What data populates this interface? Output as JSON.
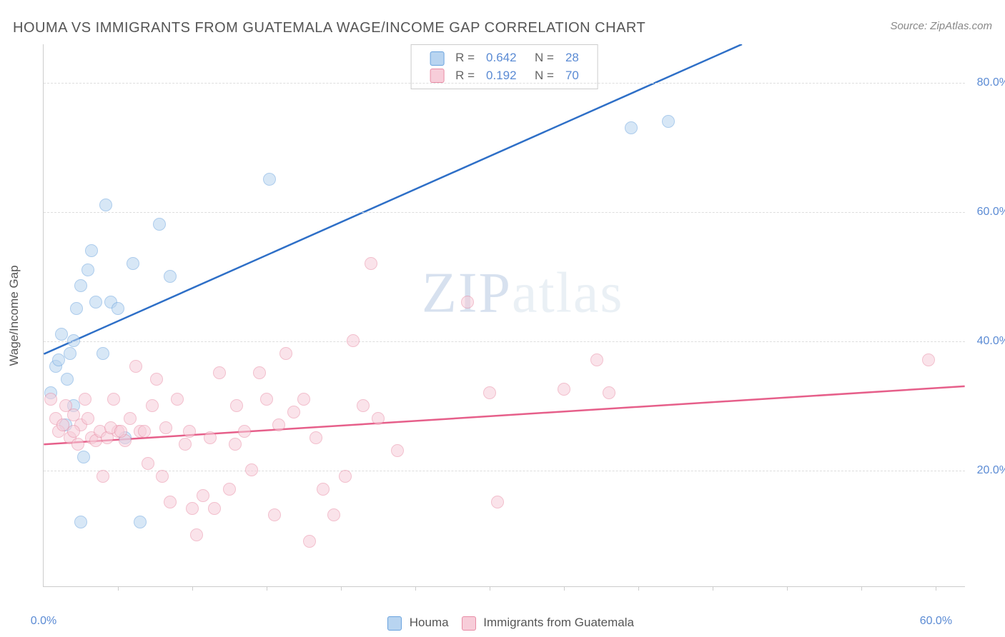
{
  "title": "HOUMA VS IMMIGRANTS FROM GUATEMALA WAGE/INCOME GAP CORRELATION CHART",
  "source": "Source: ZipAtlas.com",
  "ylabel": "Wage/Income Gap",
  "watermark_zip": "ZIP",
  "watermark_atlas": "atlas",
  "chart": {
    "type": "scatter",
    "background_color": "#ffffff",
    "grid_color": "#dddddd",
    "axis_color": "#cccccc",
    "tick_label_color": "#5b8bd4",
    "xlim": [
      0,
      62
    ],
    "ylim": [
      2,
      86
    ],
    "yticks": [
      20,
      40,
      60,
      80
    ],
    "ytick_labels": [
      "20.0%",
      "40.0%",
      "60.0%",
      "80.0%"
    ],
    "xtick_marks": [
      5,
      10,
      15,
      20,
      25,
      30,
      35,
      40,
      45,
      50,
      55,
      60
    ],
    "xtick_labels": [
      {
        "x": 0,
        "label": "0.0%"
      },
      {
        "x": 60,
        "label": "60.0%"
      }
    ],
    "point_radius": 9,
    "point_opacity": 0.55,
    "line_width": 2.5
  },
  "series": [
    {
      "name": "Houma",
      "fill": "#b8d4f0",
      "stroke": "#6aa3de",
      "line_color": "#2e6fc7",
      "r_label": "R =",
      "r_value": "0.642",
      "n_label": "N =",
      "n_value": "28",
      "trend": {
        "x1": 0,
        "y1": 38,
        "x2": 47,
        "y2": 86
      },
      "points": [
        [
          0.5,
          32
        ],
        [
          0.8,
          36
        ],
        [
          1.0,
          37
        ],
        [
          1.2,
          41
        ],
        [
          1.5,
          27
        ],
        [
          1.8,
          38
        ],
        [
          2.0,
          40
        ],
        [
          2.2,
          45
        ],
        [
          2.5,
          48.5
        ],
        [
          2.7,
          22
        ],
        [
          3.0,
          51
        ],
        [
          3.2,
          54
        ],
        [
          3.5,
          46
        ],
        [
          4.0,
          38
        ],
        [
          4.2,
          61
        ],
        [
          4.5,
          46
        ],
        [
          5.0,
          45
        ],
        [
          5.5,
          25
        ],
        [
          6.0,
          52
        ],
        [
          6.5,
          12
        ],
        [
          7.8,
          58
        ],
        [
          2.5,
          12
        ],
        [
          8.5,
          50
        ],
        [
          15.2,
          65
        ],
        [
          39.5,
          73
        ],
        [
          42.0,
          74
        ],
        [
          2.0,
          30
        ],
        [
          1.6,
          34
        ]
      ]
    },
    {
      "name": "Immigrants from Guatemala",
      "fill": "#f7cdd9",
      "stroke": "#e88ca5",
      "line_color": "#e65f8a",
      "r_label": "R =",
      "r_value": "0.192",
      "n_label": "N =",
      "n_value": "70",
      "trend": {
        "x1": 0,
        "y1": 24,
        "x2": 62,
        "y2": 33
      },
      "points": [
        [
          0.5,
          31
        ],
        [
          0.8,
          28
        ],
        [
          1.0,
          26
        ],
        [
          1.3,
          27
        ],
        [
          1.5,
          30
        ],
        [
          1.8,
          25
        ],
        [
          2.0,
          28.5
        ],
        [
          2.3,
          24
        ],
        [
          2.5,
          27
        ],
        [
          2.8,
          31
        ],
        [
          3.2,
          25
        ],
        [
          3.5,
          24.5
        ],
        [
          3.8,
          26
        ],
        [
          4.0,
          19
        ],
        [
          4.3,
          25
        ],
        [
          4.7,
          31
        ],
        [
          5.0,
          26
        ],
        [
          5.5,
          24.5
        ],
        [
          5.8,
          28
        ],
        [
          6.2,
          36
        ],
        [
          6.5,
          26
        ],
        [
          7.0,
          21
        ],
        [
          7.3,
          30
        ],
        [
          7.6,
          34
        ],
        [
          8.0,
          19
        ],
        [
          8.5,
          15
        ],
        [
          9.0,
          31
        ],
        [
          9.5,
          24
        ],
        [
          10.0,
          14
        ],
        [
          10.3,
          10
        ],
        [
          10.7,
          16
        ],
        [
          11.2,
          25
        ],
        [
          11.8,
          35
        ],
        [
          12.5,
          17
        ],
        [
          12.9,
          24
        ],
        [
          13.5,
          26
        ],
        [
          14.0,
          20
        ],
        [
          14.5,
          35
        ],
        [
          15.0,
          31
        ],
        [
          15.5,
          13
        ],
        [
          15.8,
          27
        ],
        [
          16.3,
          38
        ],
        [
          16.8,
          29
        ],
        [
          17.5,
          31
        ],
        [
          17.9,
          9
        ],
        [
          18.3,
          25
        ],
        [
          18.8,
          17
        ],
        [
          19.5,
          13
        ],
        [
          20.3,
          19
        ],
        [
          20.8,
          40
        ],
        [
          21.5,
          30
        ],
        [
          22.0,
          52
        ],
        [
          22.5,
          28
        ],
        [
          23.8,
          23
        ],
        [
          28.5,
          46
        ],
        [
          30.0,
          32
        ],
        [
          30.5,
          15
        ],
        [
          35.0,
          32.5
        ],
        [
          38.0,
          32
        ],
        [
          37.2,
          37
        ],
        [
          59.5,
          37
        ],
        [
          4.5,
          26.5
        ],
        [
          6.8,
          26
        ],
        [
          8.2,
          26.5
        ],
        [
          9.8,
          26
        ],
        [
          11.5,
          14
        ],
        [
          13.0,
          30
        ],
        [
          3.0,
          28
        ],
        [
          5.2,
          26
        ],
        [
          2.0,
          26
        ]
      ]
    }
  ],
  "bottom_legend": [
    {
      "swatch_fill": "#b8d4f0",
      "swatch_stroke": "#6aa3de",
      "label": "Houma"
    },
    {
      "swatch_fill": "#f7cdd9",
      "swatch_stroke": "#e88ca5",
      "label": "Immigrants from Guatemala"
    }
  ]
}
